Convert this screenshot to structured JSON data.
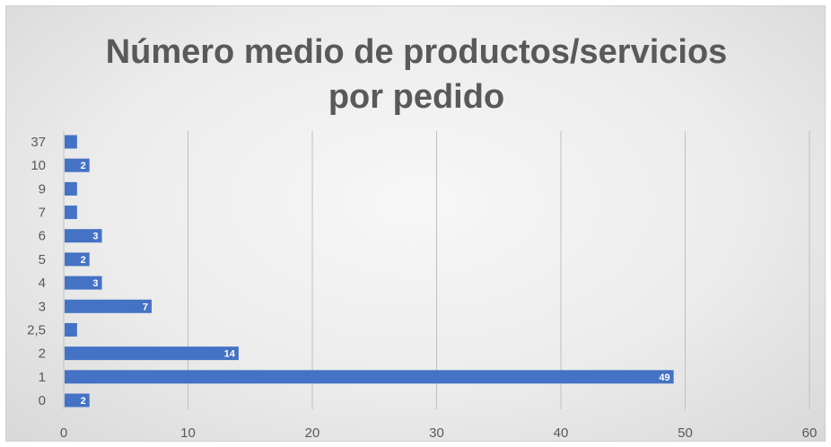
{
  "chart_data": {
    "type": "bar",
    "orientation": "horizontal",
    "title_lines": [
      "Número medio de productos/servicios",
      "por pedido"
    ],
    "categories": [
      "0",
      "1",
      "2",
      "2,5",
      "3",
      "4",
      "5",
      "6",
      "7",
      "9",
      "10",
      "37"
    ],
    "values": [
      2,
      49,
      14,
      1,
      7,
      3,
      2,
      3,
      1,
      1,
      2,
      1
    ],
    "data_labels": [
      "2",
      "49",
      "14",
      "",
      "7",
      "3",
      "2",
      "3",
      "",
      "",
      "2",
      ""
    ],
    "xlim": [
      0,
      60
    ],
    "xticks": [
      "0",
      "10",
      "20",
      "30",
      "40",
      "50",
      "60"
    ],
    "xlabel": "",
    "ylabel": "",
    "grid": "vertical",
    "legend": "none",
    "bar_color": "#4472c4",
    "label_color": "#ffffff",
    "axis_text_color": "#595959",
    "grid_color": "#bfbfbf"
  }
}
